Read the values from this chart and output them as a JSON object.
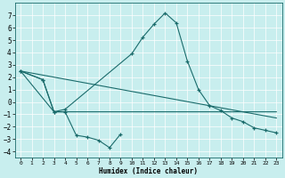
{
  "xlabel": "Humidex (Indice chaleur)",
  "xlim": [
    -0.5,
    23.5
  ],
  "ylim": [
    -4.5,
    8.0
  ],
  "yticks": [
    -4,
    -3,
    -2,
    -1,
    0,
    1,
    2,
    3,
    4,
    5,
    6,
    7
  ],
  "xticks": [
    0,
    1,
    2,
    3,
    4,
    5,
    6,
    7,
    8,
    9,
    10,
    11,
    12,
    13,
    14,
    15,
    16,
    17,
    18,
    19,
    20,
    21,
    22,
    23
  ],
  "bg_color": "#c8eeee",
  "grid_color": "#b0d8d8",
  "line_color": "#1a6b6b",
  "line1_x": [
    0,
    2,
    3,
    4,
    5,
    6,
    7,
    8,
    9
  ],
  "line1_y": [
    2.5,
    1.8,
    -0.8,
    -0.8,
    -2.7,
    -2.85,
    -3.1,
    -3.7,
    -2.6
  ],
  "line2_x": [
    0,
    2,
    3,
    4,
    10,
    11,
    12,
    13,
    14,
    15,
    16,
    17,
    18,
    19,
    20,
    21,
    22,
    23
  ],
  "line2_y": [
    2.5,
    1.8,
    -0.8,
    -0.6,
    3.9,
    5.25,
    6.3,
    7.2,
    6.4,
    3.3,
    1.0,
    -0.3,
    -0.7,
    -1.3,
    -1.6,
    -2.1,
    -2.3,
    -2.5
  ],
  "line3_x": [
    0,
    3,
    4,
    23
  ],
  "line3_y": [
    2.5,
    -0.8,
    -0.8,
    -0.8
  ],
  "line4_x": [
    0,
    23
  ],
  "line4_y": [
    2.5,
    -1.3
  ]
}
